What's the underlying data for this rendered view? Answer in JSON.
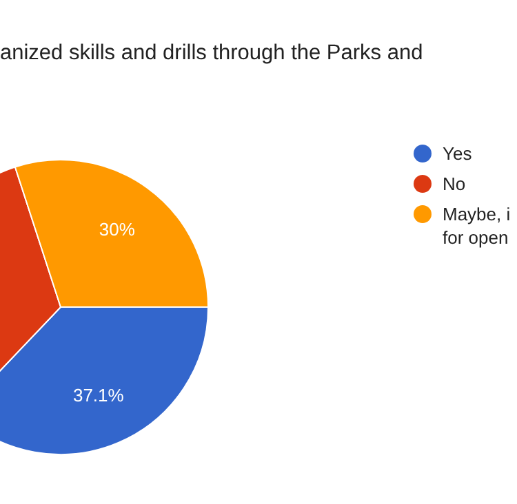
{
  "chart_data": {
    "type": "pie",
    "title": "anized skills and drills through the Parks and",
    "categories": [
      "Yes",
      "No",
      "Maybe, i for open"
    ],
    "values": [
      37.1,
      32.9,
      30
    ],
    "colors": [
      "#3366cc",
      "#dc3912",
      "#ff9900"
    ],
    "value_labels": [
      "37.1%",
      null,
      "30%"
    ],
    "legend": "right"
  }
}
